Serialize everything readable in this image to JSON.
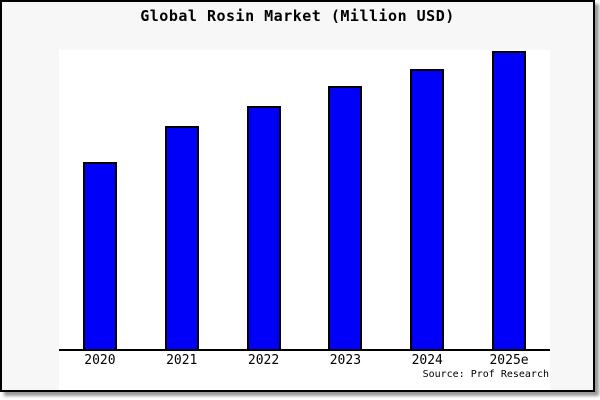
{
  "chart_data": {
    "type": "bar",
    "title": "Global Rosin Market (Million USD)",
    "categories": [
      "2020",
      "2021",
      "2022",
      "2023",
      "2024",
      "2025e"
    ],
    "values": [
      188,
      224,
      244,
      264,
      281,
      299
    ],
    "ylim": [
      0,
      300
    ],
    "xlabel": "",
    "ylabel": "",
    "y_axis_visible": false,
    "grid": false,
    "legend": false,
    "bar_color": "#0000fa",
    "bar_edge_color": "#000000",
    "source_note": "Source: Prof Research"
  },
  "colors": {
    "page_bg": "#ffffff",
    "frame_bg": "#f7f7f7",
    "frame_border": "#000000",
    "plot_bg": "#ffffff",
    "axis": "#000000",
    "shadow": "#999999",
    "text": "#000000"
  }
}
